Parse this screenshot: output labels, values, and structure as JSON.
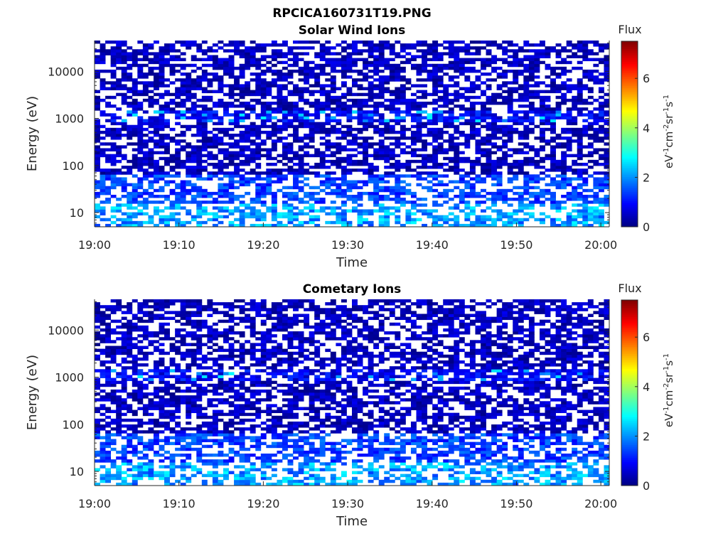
{
  "figure": {
    "title": "RPCICA160731T19.PNG"
  },
  "chart_data": [
    {
      "type": "heatmap",
      "title": "Solar Wind Ions",
      "xlabel": "Time",
      "ylabel": "Energy (eV)",
      "x_ticks": [
        "19:00",
        "19:10",
        "19:20",
        "19:30",
        "19:40",
        "19:50",
        "20:00"
      ],
      "xlim": [
        "19:00",
        "20:01"
      ],
      "y_ticks": [
        10,
        100,
        1000,
        10000
      ],
      "y_tick_labels": [
        "10",
        "100",
        "1000",
        "10000"
      ],
      "ylim": [
        5,
        45000
      ],
      "y_scale": "log",
      "colorbar": {
        "title": "Flux",
        "label_base": "eV",
        "label_parts": [
          "-1",
          "cm",
          "-2",
          "sr",
          "-1",
          "s",
          "-1"
        ],
        "ticks": [
          0,
          2,
          4,
          6
        ],
        "range": [
          0,
          7.5
        ],
        "colormap": "jet"
      },
      "data_summary": "Sparse cells: mostly 0–1 at high energies (dark blue), ~1.5–2.5 at 5–60 eV (light blue/cyan), occasional ~2.5–3 cells near 1000 eV; many empty (white) cells."
    },
    {
      "type": "heatmap",
      "title": "Cometary Ions",
      "xlabel": "Time",
      "ylabel": "Energy (eV)",
      "x_ticks": [
        "19:00",
        "19:10",
        "19:20",
        "19:30",
        "19:40",
        "19:50",
        "20:00"
      ],
      "xlim": [
        "19:00",
        "20:01"
      ],
      "y_ticks": [
        10,
        100,
        1000,
        10000
      ],
      "y_tick_labels": [
        "10",
        "100",
        "1000",
        "10000"
      ],
      "ylim": [
        5,
        45000
      ],
      "y_scale": "log",
      "colorbar": {
        "title": "Flux",
        "label_base": "eV",
        "label_parts": [
          "-1",
          "cm",
          "-2",
          "sr",
          "-1",
          "s",
          "-1"
        ],
        "ticks": [
          0,
          2,
          4,
          6
        ],
        "range": [
          0,
          7.5
        ],
        "colormap": "jet"
      },
      "data_summary": "Same pattern as Solar Wind Ions panel: sparse low flux values dominated by dark blue at high energies and light blue/cyan at low energies."
    }
  ]
}
